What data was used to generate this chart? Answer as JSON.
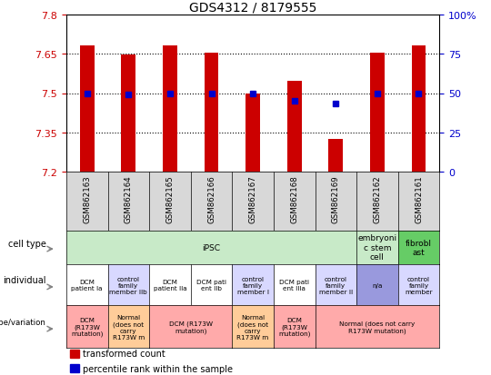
{
  "title": "GDS4312 / 8179555",
  "samples": [
    "GSM862163",
    "GSM862164",
    "GSM862165",
    "GSM862166",
    "GSM862167",
    "GSM862168",
    "GSM862169",
    "GSM862162",
    "GSM862161"
  ],
  "bar_values": [
    7.68,
    7.645,
    7.68,
    7.655,
    7.5,
    7.545,
    7.325,
    7.655,
    7.68
  ],
  "bar_base": 7.2,
  "percentile_values": [
    7.5,
    7.495,
    7.5,
    7.5,
    7.5,
    7.47,
    7.46,
    7.5,
    7.5
  ],
  "ylim": [
    7.2,
    7.8
  ],
  "yticks_left": [
    7.2,
    7.35,
    7.5,
    7.65,
    7.8
  ],
  "yticks_right_labels": [
    "0",
    "25",
    "50",
    "75",
    "100%"
  ],
  "yticks_right_vals": [
    0,
    25,
    50,
    75,
    100
  ],
  "bar_color": "#cc0000",
  "percentile_color": "#0000cc",
  "dotted_line_y": [
    7.35,
    7.5,
    7.65
  ],
  "cell_type_groups": [
    {
      "label": "iPSC",
      "cols": [
        0,
        1,
        2,
        3,
        4,
        5,
        6
      ],
      "color": "#c8eac8"
    },
    {
      "label": "embryoni\nc stem\ncell",
      "cols": [
        7
      ],
      "color": "#c8eac8"
    },
    {
      "label": "fibrobl\nast",
      "cols": [
        8
      ],
      "color": "#66cc66"
    }
  ],
  "individual_data": [
    {
      "label": "DCM\npatient Ia",
      "col": 0,
      "color": "#ffffff"
    },
    {
      "label": "control\nfamily\nmember IIb",
      "col": 1,
      "color": "#d8d8ff"
    },
    {
      "label": "DCM\npatient IIa",
      "col": 2,
      "color": "#ffffff"
    },
    {
      "label": "DCM pati\nent IIb",
      "col": 3,
      "color": "#ffffff"
    },
    {
      "label": "control\nfamily\nmember I",
      "col": 4,
      "color": "#d8d8ff"
    },
    {
      "label": "DCM pati\nent IIIa",
      "col": 5,
      "color": "#ffffff"
    },
    {
      "label": "control\nfamily\nmember II",
      "col": 6,
      "color": "#d8d8ff"
    },
    {
      "label": "n/a",
      "col": 7,
      "color": "#9999dd"
    },
    {
      "label": "control\nfamily\nmember",
      "col": 8,
      "color": "#d8d8ff"
    }
  ],
  "genotype_data": [
    {
      "label": "DCM\n(R173W\nmutation)",
      "cols": [
        0
      ],
      "color": "#ffaaaa"
    },
    {
      "label": "Normal\n(does not\ncarry\nR173W m",
      "cols": [
        1
      ],
      "color": "#ffcc99"
    },
    {
      "label": "DCM (R173W\nmutation)",
      "cols": [
        2,
        3
      ],
      "color": "#ffaaaa"
    },
    {
      "label": "Normal\n(does not\ncarry\nR173W m",
      "cols": [
        4
      ],
      "color": "#ffcc99"
    },
    {
      "label": "DCM\n(R173W\nmutation)",
      "cols": [
        5
      ],
      "color": "#ffaaaa"
    },
    {
      "label": "Normal (does not carry\nR173W mutation)",
      "cols": [
        6,
        7,
        8
      ],
      "color": "#ffaaaa"
    }
  ],
  "row_labels": [
    "cell type",
    "individual",
    "genotype/variation"
  ],
  "legend_items": [
    {
      "color": "#cc0000",
      "label": "transformed count"
    },
    {
      "color": "#0000cc",
      "label": "percentile rank within the sample"
    }
  ]
}
